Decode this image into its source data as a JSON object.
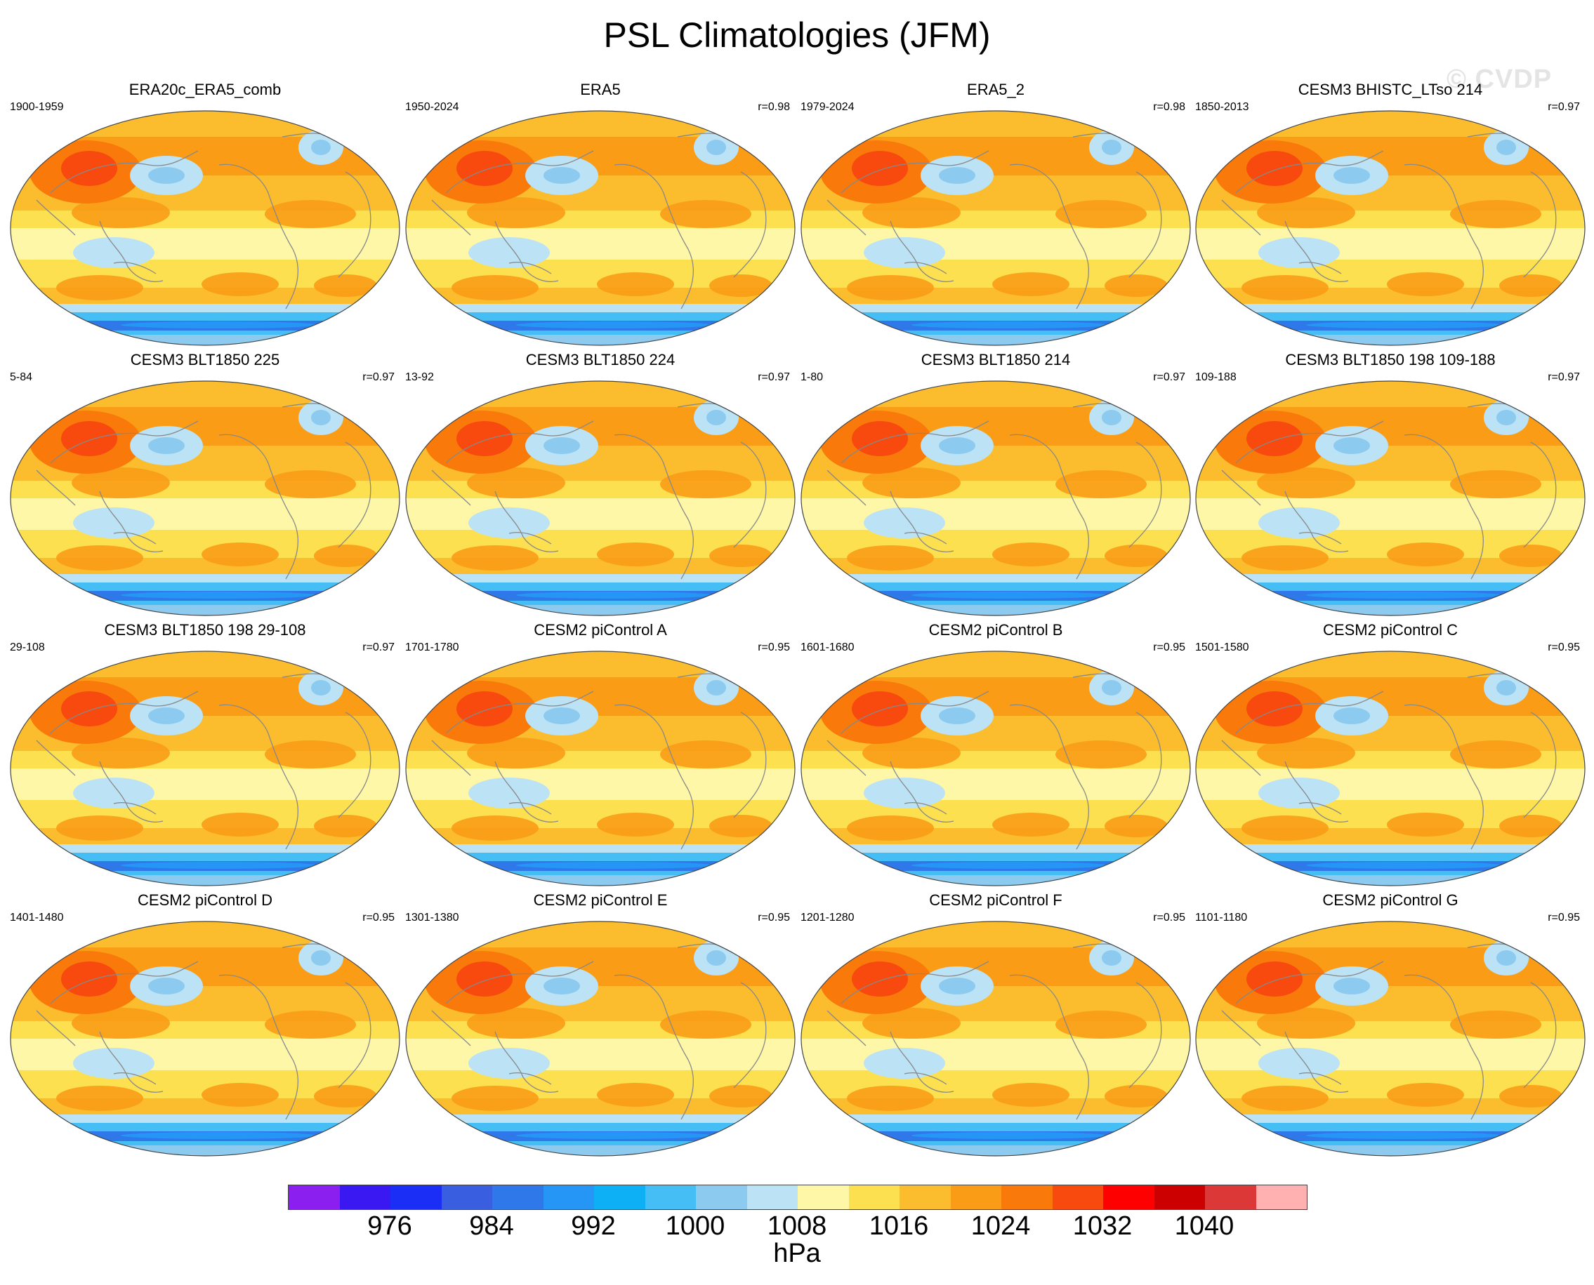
{
  "title": "PSL Climatologies (JFM)",
  "watermark": "© CVDP",
  "panels": [
    {
      "title": "ERA20c_ERA5_comb",
      "years": "1900-1959",
      "r": ""
    },
    {
      "title": "ERA5",
      "years": "1950-2024",
      "r": "r=0.98"
    },
    {
      "title": "ERA5_2",
      "years": "1979-2024",
      "r": "r=0.98"
    },
    {
      "title": "CESM3 BHISTC_LTso 214",
      "years": "1850-2013",
      "r": "r=0.97"
    },
    {
      "title": "CESM3 BLT1850 225",
      "years": "5-84",
      "r": "r=0.97"
    },
    {
      "title": "CESM3 BLT1850 224",
      "years": "13-92",
      "r": "r=0.97"
    },
    {
      "title": "CESM3 BLT1850 214",
      "years": "1-80",
      "r": "r=0.97"
    },
    {
      "title": "CESM3 BLT1850 198 109-188",
      "years": "109-188",
      "r": "r=0.97"
    },
    {
      "title": "CESM3 BLT1850 198 29-108",
      "years": "29-108",
      "r": "r=0.97"
    },
    {
      "title": "CESM2 piControl A",
      "years": "1701-1780",
      "r": "r=0.95"
    },
    {
      "title": "CESM2 piControl B",
      "years": "1601-1680",
      "r": "r=0.95"
    },
    {
      "title": "CESM2 piControl C",
      "years": "1501-1580",
      "r": "r=0.95"
    },
    {
      "title": "CESM2 piControl D",
      "years": "1401-1480",
      "r": "r=0.95"
    },
    {
      "title": "CESM2 piControl E",
      "years": "1301-1380",
      "r": "r=0.95"
    },
    {
      "title": "CESM2 piControl F",
      "years": "1201-1280",
      "r": "r=0.95"
    },
    {
      "title": "CESM2 piControl G",
      "years": "1101-1180",
      "r": "r=0.95"
    }
  ],
  "colorbar": {
    "colors": [
      "#8a1ff0",
      "#3a18f2",
      "#1a2ef5",
      "#3a5ee0",
      "#2f78ea",
      "#2596f5",
      "#0db0f5",
      "#45bdf5",
      "#8ccaf0",
      "#bce2f5",
      "#fff7a8",
      "#fde050",
      "#fbbd2e",
      "#fa9c16",
      "#f97a0a",
      "#f84a0f",
      "#ff0000",
      "#cc0000",
      "#dd3838",
      "#ffb0b0"
    ],
    "tick_labels": [
      "976",
      "984",
      "992",
      "1000",
      "1008",
      "1016",
      "1024",
      "1032",
      "1040"
    ],
    "unit": "hPa"
  },
  "colors": {
    "land_outline": "#888888",
    "map_border": "#444444"
  }
}
